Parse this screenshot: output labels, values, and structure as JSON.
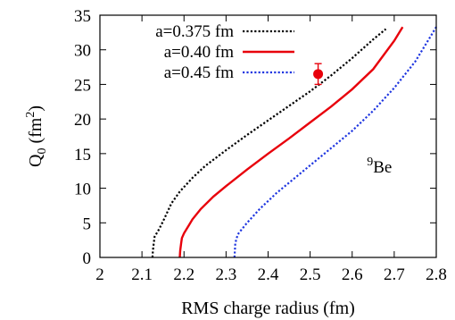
{
  "chart_data": {
    "type": "line",
    "xlabel": "RMS charge radius (fm)",
    "ylabel_main": "Q",
    "ylabel_sub": "0",
    "ylabel_unit_pre": " (fm",
    "ylabel_unit_sup": "2",
    "ylabel_unit_post": ")",
    "xlim": [
      2.0,
      2.8
    ],
    "ylim": [
      0,
      35
    ],
    "xticks": [
      2,
      2.1,
      2.2,
      2.3,
      2.4,
      2.5,
      2.6,
      2.7,
      2.8
    ],
    "xtick_labels": [
      "2",
      "2.1",
      "2.2",
      "2.3",
      "2.4",
      "2.5",
      "2.6",
      "2.7",
      "2.8"
    ],
    "yticks": [
      0,
      5,
      10,
      15,
      20,
      25,
      30,
      35
    ],
    "ytick_labels": [
      "0",
      "5",
      "10",
      "15",
      "20",
      "25",
      "30",
      "35"
    ],
    "legend_position": "top-left",
    "annotation": {
      "sup": "9",
      "main": "Be",
      "x": 2.635,
      "y": 12.3
    },
    "series": [
      {
        "name": "a=0.375 fm",
        "color": "#000000",
        "style": "dotted",
        "points": [
          [
            2.125,
            0
          ],
          [
            2.126,
            1
          ],
          [
            2.128,
            2
          ],
          [
            2.13,
            3
          ],
          [
            2.14,
            4
          ],
          [
            2.15,
            5.2
          ],
          [
            2.16,
            6.5
          ],
          [
            2.17,
            7.8
          ],
          [
            2.19,
            9.5
          ],
          [
            2.22,
            11.5
          ],
          [
            2.25,
            13.2
          ],
          [
            2.3,
            15.5
          ],
          [
            2.35,
            17.7
          ],
          [
            2.4,
            19.8
          ],
          [
            2.45,
            21.9
          ],
          [
            2.5,
            24.0
          ],
          [
            2.55,
            26.3
          ],
          [
            2.6,
            28.8
          ],
          [
            2.65,
            31.5
          ],
          [
            2.68,
            33.0
          ]
        ]
      },
      {
        "name": "a=0.40 fm",
        "color": "#e8000b",
        "style": "solid",
        "points": [
          [
            2.19,
            0
          ],
          [
            2.191,
            1
          ],
          [
            2.193,
            2
          ],
          [
            2.195,
            2.8
          ],
          [
            2.2,
            3.5
          ],
          [
            2.21,
            4.5
          ],
          [
            2.22,
            5.5
          ],
          [
            2.24,
            7.0
          ],
          [
            2.27,
            8.8
          ],
          [
            2.3,
            10.3
          ],
          [
            2.35,
            12.7
          ],
          [
            2.4,
            15.0
          ],
          [
            2.45,
            17.2
          ],
          [
            2.5,
            19.5
          ],
          [
            2.55,
            21.8
          ],
          [
            2.6,
            24.3
          ],
          [
            2.65,
            27.2
          ],
          [
            2.7,
            31.3
          ],
          [
            2.72,
            33.3
          ]
        ]
      },
      {
        "name": "a=0.45 fm",
        "color": "#1f36e0",
        "style": "dotted",
        "points": [
          [
            2.32,
            0
          ],
          [
            2.321,
            1
          ],
          [
            2.322,
            2
          ],
          [
            2.325,
            2.8
          ],
          [
            2.33,
            3.5
          ],
          [
            2.35,
            5.0
          ],
          [
            2.38,
            7.0
          ],
          [
            2.42,
            9.3
          ],
          [
            2.46,
            11.3
          ],
          [
            2.5,
            13.3
          ],
          [
            2.55,
            15.8
          ],
          [
            2.6,
            18.3
          ],
          [
            2.65,
            21.2
          ],
          [
            2.7,
            24.5
          ],
          [
            2.75,
            28.3
          ],
          [
            2.8,
            33.3
          ]
        ]
      }
    ],
    "data_point": {
      "x": 2.519,
      "y": 26.5,
      "y_err_plus": 1.5,
      "y_err_minus": 1.5,
      "color": "#e8000b"
    }
  }
}
